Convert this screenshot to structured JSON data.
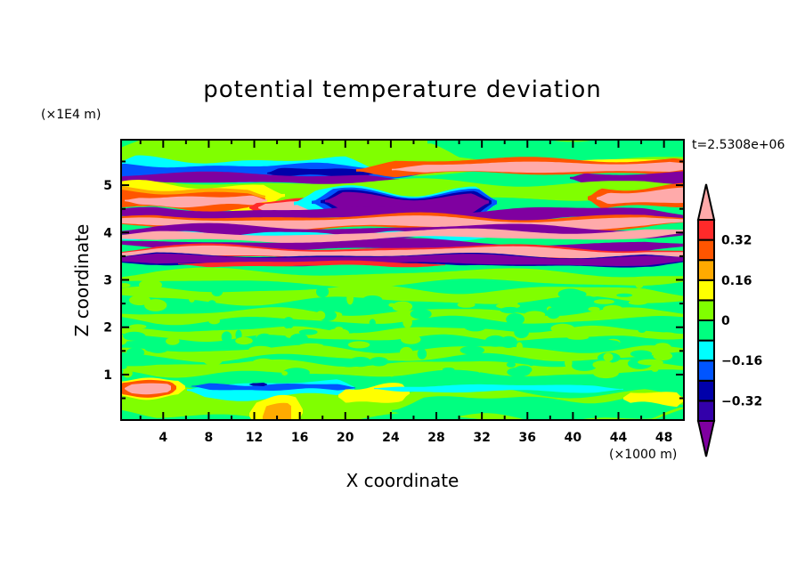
{
  "chart_data": {
    "type": "heatmap",
    "subtype": "filled-contour",
    "title": "potential temperature deviation",
    "xlabel": "X coordinate",
    "ylabel": "Z coordinate",
    "x_unit_label": "(×1000 m)",
    "y_unit_label": "(×1E4 m)",
    "annotation": "t=2.5308e+06",
    "xlim": [
      0.3,
      49.75
    ],
    "ylim": [
      0.04,
      5.96
    ],
    "xticks": [
      4,
      8,
      12,
      16,
      20,
      24,
      28,
      32,
      36,
      40,
      44,
      48
    ],
    "xtick_labels": [
      "4",
      "8",
      "12",
      "16",
      "20",
      "24",
      "28",
      "32",
      "36",
      "40",
      "44",
      "48"
    ],
    "yticks": [
      1,
      2,
      3,
      4,
      5
    ],
    "ytick_labels": [
      "1",
      "2",
      "3",
      "4",
      "5"
    ],
    "grid": false,
    "colorbar": {
      "levels": [
        -0.4,
        -0.32,
        -0.24,
        -0.16,
        -0.08,
        0,
        0.08,
        0.16,
        0.24,
        0.32,
        0.4
      ],
      "labeled_levels": [
        0.32,
        0.16,
        0,
        -0.16,
        -0.32
      ],
      "labels": [
        "0.32",
        "0.16",
        "0",
        "−0.16",
        "−0.32"
      ],
      "colors_low_to_high": [
        "#3300aa",
        "#0000aa",
        "#0055ff",
        "#00ffff",
        "#00ff80",
        "#80ff00",
        "#ffff00",
        "#ffaa00",
        "#ff5500",
        "#ff2a2a"
      ],
      "under_color": "#7f00a0",
      "over_color": "#ffaaaa",
      "placement": "right"
    },
    "description_of_field": "layered bands of strong positive/negative deviation between z≈3.3 and z≈5.3; near-zero values elsewhere"
  }
}
